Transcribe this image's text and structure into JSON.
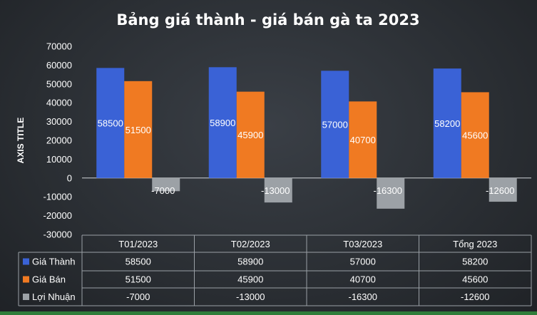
{
  "chart_data": {
    "type": "bar",
    "title": "Bảng giá thành - giá bán gà ta 2023",
    "ylabel": "AXIS TITLE",
    "categories": [
      "T01/2023",
      "T02/2023",
      "T03/2023",
      "Tổng 2023"
    ],
    "series": [
      {
        "name": "Giá Thành",
        "values": [
          58500,
          58900,
          57000,
          58200
        ],
        "color": "#3a62d6"
      },
      {
        "name": "Giá Bán",
        "values": [
          51500,
          45900,
          40700,
          45600
        ],
        "color": "#f07a22"
      },
      {
        "name": "Lợi Nhuận",
        "values": [
          -7000,
          -13000,
          -16300,
          -12600
        ],
        "color": "#9aa0a6"
      }
    ],
    "ylim": [
      -30000,
      70000
    ],
    "yticks": [
      70000,
      60000,
      50000,
      40000,
      30000,
      20000,
      10000,
      0,
      -10000,
      -20000,
      -30000
    ],
    "grid": false,
    "legend": "data-table",
    "data_labels": true
  }
}
